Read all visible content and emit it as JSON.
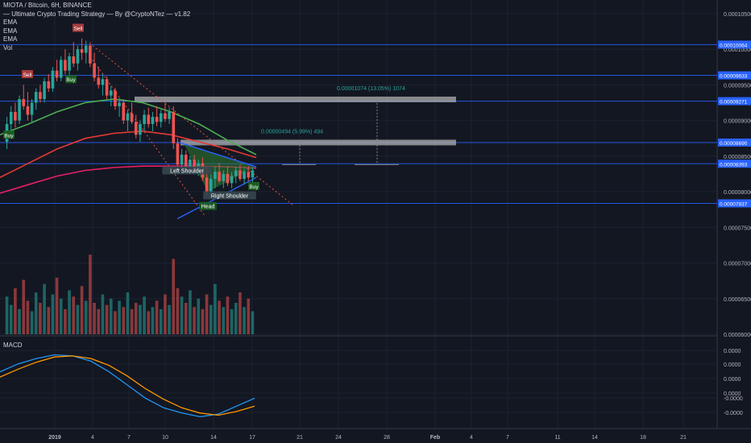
{
  "header": {
    "symbol_line": "MIOTA / Bitcoin, 6H, BINANCE",
    "indicator_line": "— Ultimate Crypto Trading Strategy — By @CryptoNTez — v1.82",
    "ema_labels": [
      "EMA",
      "EMA",
      "EMA"
    ],
    "vol_label": "Vol"
  },
  "macd_label": "MACD",
  "chart_data": {
    "type": "candlestick",
    "title": "MIOTA / Bitcoin, 6H, BINANCE",
    "price_axis": {
      "ticks": [
        "0.00010500",
        "0.00010000",
        "0.00009500",
        "0.00009000",
        "0.00008500",
        "0.00008000",
        "0.00007500",
        "0.00007000",
        "0.00006500",
        "0.00006000"
      ],
      "range": [
        6e-05,
        0.000106
      ]
    },
    "macd_axis": {
      "ticks": [
        "0.0000",
        "0.0000",
        "0.0000",
        "0.0000",
        "-0.0000",
        "-0.0000"
      ]
    },
    "time_axis": {
      "labels": [
        "2019",
        "4",
        "7",
        "10",
        "14",
        "17",
        "21",
        "24",
        "28",
        "Feb",
        "4",
        "7",
        "11",
        "14",
        "18",
        "21"
      ]
    },
    "price_level_tags": [
      {
        "label": "0.00010064",
        "value": 0.00010064,
        "color": "#2962ff"
      },
      {
        "label": "0.00009633",
        "value": 9.633e-05,
        "color": "#2962ff"
      },
      {
        "label": "0.00009271",
        "value": 9.271e-05,
        "color": "#2962ff"
      },
      {
        "label": "0.00008690",
        "value": 8.69e-05,
        "color": "#2962ff"
      },
      {
        "label": "0.00008393",
        "value": 8.393e-05,
        "color": "#2962ff"
      },
      {
        "label": "0.00007837",
        "value": 7.837e-05,
        "color": "#2962ff"
      }
    ],
    "target_annotations": [
      {
        "text": "0.00001074 (13.05%) 1074",
        "color": "#26a69a"
      },
      {
        "text": "0.00000494 (5.99%) 494",
        "color": "#26a69a"
      }
    ],
    "pattern_labels": [
      "Left Shoulder",
      "Head",
      "Right Shoulder"
    ],
    "signals": [
      {
        "text": "Sell",
        "type": "sell"
      },
      {
        "text": "Sell",
        "type": "sell"
      },
      {
        "text": "Buy",
        "type": "buy"
      },
      {
        "text": "Buy",
        "type": "buy"
      },
      {
        "text": "Buy",
        "type": "buy"
      }
    ],
    "ohlc": [
      [
        8.7e-05,
        9.05e-05,
        8.6e-05,
        8.95e-05
      ],
      [
        8.95e-05,
        9.2e-05,
        8.85e-05,
        9.12e-05
      ],
      [
        9.12e-05,
        9.25e-05,
        8.9e-05,
        9e-05
      ],
      [
        9e-05,
        9.35e-05,
        8.95e-05,
        9.3e-05
      ],
      [
        9.3e-05,
        9.5e-05,
        9.15e-05,
        9.2e-05
      ],
      [
        9.2e-05,
        9.4e-05,
        9e-05,
        9.08e-05
      ],
      [
        9.08e-05,
        9.3e-05,
        8.98e-05,
        9.25e-05
      ],
      [
        9.25e-05,
        9.45e-05,
        9.15e-05,
        9.4e-05
      ],
      [
        9.4e-05,
        9.5e-05,
        9.25e-05,
        9.3e-05
      ],
      [
        9.3e-05,
        9.6e-05,
        9.25e-05,
        9.55e-05
      ],
      [
        9.55e-05,
        9.65e-05,
        9.4e-05,
        9.45e-05
      ],
      [
        9.45e-05,
        9.75e-05,
        9.4e-05,
        9.7e-05
      ],
      [
        9.7e-05,
        9.85e-05,
        9.55e-05,
        9.6e-05
      ],
      [
        9.6e-05,
        9.9e-05,
        9.55e-05,
        9.85e-05
      ],
      [
        9.85e-05,
        0.0001,
        9.65e-05,
        9.7e-05
      ],
      [
        9.7e-05,
        9.95e-05,
        9.6e-05,
        9.9e-05
      ],
      [
        9.9e-05,
        0.000101,
        9.75e-05,
        9.8e-05
      ],
      [
        9.8e-05,
        0.0001005,
        9.7e-05,
        0.0001
      ],
      [
        0.0001,
        0.0001015,
        9.85e-05,
        9.95e-05
      ],
      [
        9.95e-05,
        0.0001012,
        9.8e-05,
        0.0001005
      ],
      [
        0.0001005,
        0.000101,
        9.75e-05,
        9.8e-05
      ],
      [
        9.8e-05,
        9.95e-05,
        9.55e-05,
        9.6e-05
      ],
      [
        9.6e-05,
        9.75e-05,
        9.45e-05,
        9.5e-05
      ],
      [
        9.5e-05,
        9.65e-05,
        9.35e-05,
        9.58e-05
      ],
      [
        9.58e-05,
        9.62e-05,
        9.3e-05,
        9.35e-05
      ],
      [
        9.35e-05,
        9.48e-05,
        9.2e-05,
        9.42e-05
      ],
      [
        9.42e-05,
        9.46e-05,
        9.15e-05,
        9.2e-05
      ],
      [
        9.2e-05,
        9.32e-05,
        9.05e-05,
        9.25e-05
      ],
      [
        9.25e-05,
        9.3e-05,
        8.95e-05,
        9e-05
      ],
      [
        9e-05,
        9.15e-05,
        8.85e-05,
        9.1e-05
      ],
      [
        9.1e-05,
        9.25e-05,
        8.95e-05,
        8.98e-05
      ],
      [
        8.98e-05,
        9.08e-05,
        8.75e-05,
        8.8e-05
      ],
      [
        8.8e-05,
        9e-05,
        8.7e-05,
        8.95e-05
      ],
      [
        8.95e-05,
        9.15e-05,
        8.85e-05,
        9.08e-05
      ],
      [
        9.08e-05,
        9.18e-05,
        8.9e-05,
        8.95e-05
      ],
      [
        8.95e-05,
        9.12e-05,
        8.85e-05,
        9.05e-05
      ],
      [
        9.05e-05,
        9.2e-05,
        8.92e-05,
        8.98e-05
      ],
      [
        8.98e-05,
        9.15e-05,
        8.9e-05,
        9.1e-05
      ],
      [
        9.1e-05,
        9.25e-05,
        8.98e-05,
        9.02e-05
      ],
      [
        9.02e-05,
        9.18e-05,
        8.95e-05,
        9.12e-05
      ],
      [
        9.12e-05,
        9.2e-05,
        8.6e-05,
        8.68e-05
      ],
      [
        8.68e-05,
        8.75e-05,
        8.3e-05,
        8.38e-05
      ],
      [
        8.38e-05,
        8.6e-05,
        8.25e-05,
        8.52e-05
      ],
      [
        8.52e-05,
        8.58e-05,
        8.3e-05,
        8.35e-05
      ],
      [
        8.35e-05,
        8.5e-05,
        8.25e-05,
        8.45e-05
      ],
      [
        8.45e-05,
        8.52e-05,
        8.28e-05,
        8.32e-05
      ],
      [
        8.32e-05,
        8.45e-05,
        8.22e-05,
        8.4e-05
      ],
      [
        8.4e-05,
        8.48e-05,
        8.15e-05,
        8.2e-05
      ],
      [
        8.2e-05,
        8.35e-05,
        7.95e-05,
        8e-05
      ],
      [
        8e-05,
        8.25e-05,
        7.9e-05,
        8.18e-05
      ],
      [
        8.18e-05,
        8.35e-05,
        8.05e-05,
        8.28e-05
      ],
      [
        8.28e-05,
        8.4e-05,
        8.12e-05,
        8.15e-05
      ],
      [
        8.15e-05,
        8.3e-05,
        8.05e-05,
        8.25e-05
      ],
      [
        8.25e-05,
        8.35e-05,
        8.08e-05,
        8.12e-05
      ],
      [
        8.12e-05,
        8.28e-05,
        8.05e-05,
        8.22e-05
      ],
      [
        8.22e-05,
        8.35e-05,
        8.12e-05,
        8.3e-05
      ],
      [
        8.3e-05,
        8.38e-05,
        8.15e-05,
        8.18e-05
      ],
      [
        8.18e-05,
        8.32e-05,
        8.1e-05,
        8.28e-05
      ],
      [
        8.28e-05,
        8.36e-05,
        8.15e-05,
        8.2e-05
      ],
      [
        8.2e-05,
        8.34e-05,
        8.12e-05,
        8.3e-05
      ]
    ],
    "volume": [
      18,
      14,
      22,
      12,
      26,
      16,
      11,
      20,
      15,
      24,
      13,
      19,
      27,
      17,
      12,
      21,
      18,
      14,
      23,
      16,
      38,
      15,
      12,
      19,
      14,
      17,
      11,
      16,
      13,
      20,
      12,
      15,
      14,
      18,
      11,
      13,
      16,
      12,
      19,
      14,
      36,
      22,
      18,
      15,
      21,
      13,
      17,
      12,
      19,
      14,
      24,
      16,
      13,
      18,
      12,
      15,
      20,
      13,
      17,
      11
    ],
    "volume_up": [
      1,
      1,
      0,
      1,
      0,
      0,
      1,
      1,
      0,
      1,
      0,
      1,
      0,
      1,
      0,
      1,
      0,
      1,
      0,
      1,
      0,
      0,
      0,
      1,
      0,
      1,
      0,
      1,
      0,
      1,
      0,
      0,
      1,
      1,
      0,
      1,
      0,
      1,
      0,
      1,
      0,
      0,
      1,
      0,
      1,
      0,
      1,
      0,
      0,
      1,
      1,
      0,
      1,
      0,
      1,
      1,
      0,
      1,
      0,
      1
    ],
    "ema_green": [
      8.8e-05,
      8.95e-05,
      9.12e-05,
      9.25e-05,
      9.3e-05,
      9.25e-05,
      9.12e-05,
      8.95e-05,
      8.72e-05,
      8.52e-05
    ],
    "ema_red": [
      8.2e-05,
      8.4e-05,
      8.6e-05,
      8.75e-05,
      8.82e-05,
      8.85e-05,
      8.8e-05,
      8.7e-05,
      8.6e-05,
      8.48e-05
    ],
    "ema_magenta": [
      7.98e-05,
      8.1e-05,
      8.22e-05,
      8.3e-05,
      8.34e-05,
      8.36e-05,
      8.36e-05,
      8.36e-05,
      8.35e-05,
      8.33e-05
    ],
    "macd_blue": [
      2e-06,
      3.5e-06,
      4.5e-06,
      5.2e-06,
      5e-06,
      4e-06,
      2e-06,
      -5e-07,
      -3e-06,
      -4.8e-06,
      -5.8e-06,
      -6.5e-06,
      -6e-06,
      -4.5e-06,
      -3e-06
    ],
    "macd_signal": [
      1e-06,
      2.5e-06,
      3.8e-06,
      4.8e-06,
      5e-06,
      4.5e-06,
      3.2e-06,
      1.2e-06,
      -1.2e-06,
      -3.2e-06,
      -4.8e-06,
      -5.8e-06,
      -6.2e-06,
      -5.5e-06,
      -4.5e-06
    ],
    "colors": {
      "up": "#26a69a",
      "down": "#ef5350",
      "ema_green": "#4caf50",
      "ema_red": "#e53935",
      "ema_magenta": "#e91e63",
      "macd": "#2196f3",
      "signal": "#ff9800",
      "level": "#2962ff",
      "grid": "#1e2230"
    }
  }
}
